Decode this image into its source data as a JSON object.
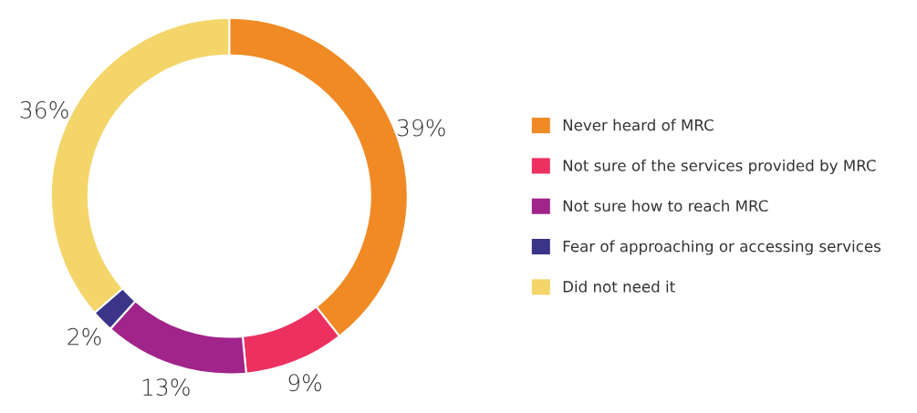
{
  "chart_data": {
    "type": "donut",
    "categories": [
      "Never heard of MRC",
      "Not sure of the services provided by MRC",
      "Not sure how to reach MRC",
      "Fear of approaching or accessing services",
      "Did not need it"
    ],
    "values": [
      39,
      9,
      13,
      2,
      36
    ],
    "value_labels": [
      "39%",
      "9%",
      "13%",
      "2%",
      "36%"
    ],
    "colors": [
      "#f08a24",
      "#ec3060",
      "#a0248a",
      "#3b3589",
      "#f3d56a"
    ],
    "legend": "right"
  }
}
